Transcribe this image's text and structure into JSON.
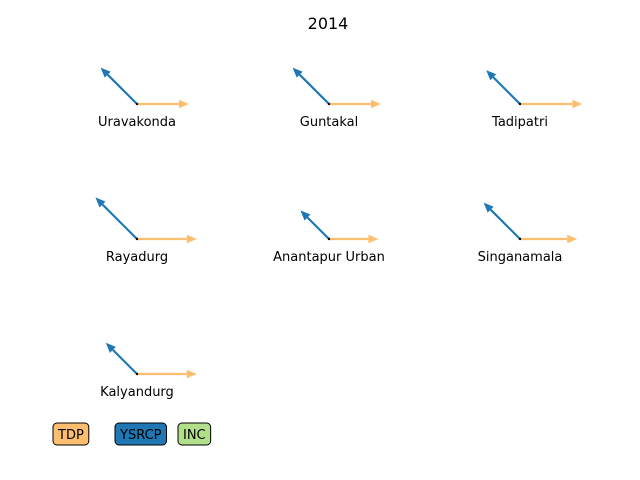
{
  "chart_data": {
    "type": "quiver",
    "title": "2014",
    "axes_visible": false,
    "legend_placement": "bottom-left",
    "series": [
      {
        "name": "TDP",
        "color": "#fdbf6f"
      },
      {
        "name": "YSRCP",
        "color": "#1f78b4"
      },
      {
        "name": "INC",
        "color": "#b2df8a"
      }
    ],
    "constituencies": [
      {
        "name": "Uravakonda",
        "arrows": [
          {
            "series": "TDP",
            "dx": 1.0,
            "dy": 0.0
          },
          {
            "series": "YSRCP",
            "dx": -0.7,
            "dy": 0.7
          }
        ]
      },
      {
        "name": "Guntakal",
        "arrows": [
          {
            "series": "TDP",
            "dx": 1.0,
            "dy": 0.0
          },
          {
            "series": "YSRCP",
            "dx": -0.7,
            "dy": 0.7
          }
        ]
      },
      {
        "name": "Tadipatri",
        "arrows": [
          {
            "series": "TDP",
            "dx": 1.2,
            "dy": 0.0
          },
          {
            "series": "YSRCP",
            "dx": -0.65,
            "dy": 0.65
          }
        ]
      },
      {
        "name": "Rayadurg",
        "arrows": [
          {
            "series": "TDP",
            "dx": 1.15,
            "dy": 0.0
          },
          {
            "series": "YSRCP",
            "dx": -0.8,
            "dy": 0.8
          }
        ]
      },
      {
        "name": "Anantapur Urban",
        "arrows": [
          {
            "series": "TDP",
            "dx": 0.95,
            "dy": 0.0
          },
          {
            "series": "YSRCP",
            "dx": -0.55,
            "dy": 0.55
          }
        ]
      },
      {
        "name": "Singanamala",
        "arrows": [
          {
            "series": "TDP",
            "dx": 1.1,
            "dy": 0.0
          },
          {
            "series": "YSRCP",
            "dx": -0.7,
            "dy": 0.7
          }
        ]
      },
      {
        "name": "Kalyandurg",
        "arrows": [
          {
            "series": "TDP",
            "dx": 1.15,
            "dy": 0.0
          },
          {
            "series": "YSRCP",
            "dx": -0.6,
            "dy": 0.6
          }
        ]
      }
    ]
  }
}
